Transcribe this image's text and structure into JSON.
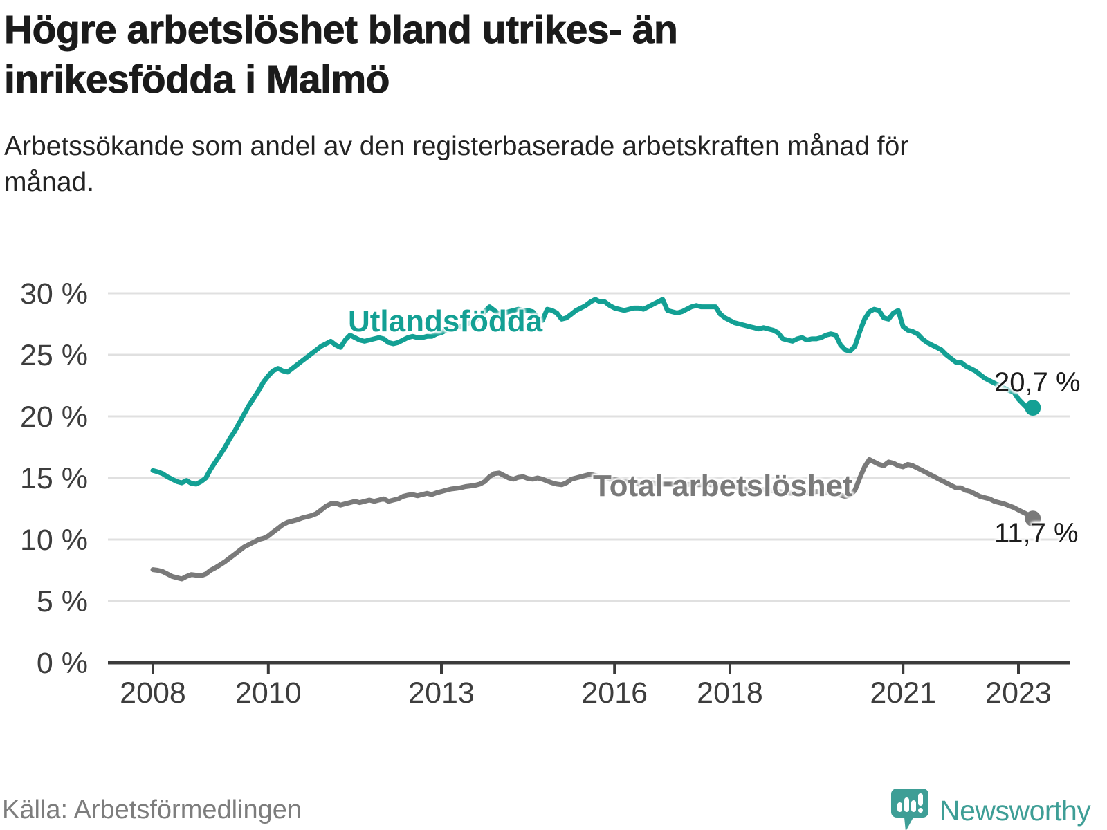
{
  "title": "Högre arbetslöshet bland utrikes- än inrikesfödda i Malmö",
  "subtitle": "Arbetssökande som andel av den registerbaserade arbetskraften månad för månad.",
  "source": "Källa: Arbetsförmedlingen",
  "brand": {
    "name": "Newsworthy",
    "icon": "newsworthy-bubble-bar-chart-icon",
    "color": "#3e9e96"
  },
  "colors": {
    "accent_teal": "#13a094",
    "series_gray": "#7a7a7a",
    "gridline": "#e0e0e0",
    "axis": "#3b3b3b",
    "text_dark": "#1b1b1b",
    "tick_text": "#3d3d3d",
    "source_text": "#7d7d7d"
  },
  "chart_data": {
    "type": "line",
    "title": "Högre arbetslöshet bland utrikes- än inrikesfödda i Malmö",
    "subtitle": "Arbetssökande som andel av den registerbaserade arbetskraften månad för månad.",
    "xlabel": "",
    "ylabel": "",
    "y_unit": "%",
    "ylim": [
      0,
      30
    ],
    "xlim": [
      2008.0,
      2023.25
    ],
    "grid": "horizontal",
    "legend_position": "inline-labels",
    "x_start_year": 2008,
    "points_per_year": 12,
    "x_ticks": [
      2008,
      2010,
      2013,
      2016,
      2018,
      2021,
      2023
    ],
    "y_ticks": [
      0,
      5,
      10,
      15,
      20,
      25,
      30
    ],
    "series": [
      {
        "name": "Utlandsfödda",
        "color": "#13a094",
        "end_label": "20,7 %",
        "end_value": 20.7,
        "values": [
          15.6,
          15.5,
          15.35,
          15.1,
          14.9,
          14.7,
          14.6,
          14.8,
          14.55,
          14.5,
          14.7,
          15.0,
          15.7,
          16.3,
          16.9,
          17.5,
          18.2,
          18.8,
          19.5,
          20.2,
          20.9,
          21.5,
          22.1,
          22.8,
          23.3,
          23.7,
          23.9,
          23.7,
          23.6,
          23.9,
          24.2,
          24.5,
          24.8,
          25.1,
          25.4,
          25.7,
          25.9,
          26.1,
          25.8,
          25.6,
          26.2,
          26.6,
          26.4,
          26.2,
          26.1,
          26.2,
          26.3,
          26.4,
          26.3,
          26.0,
          25.9,
          26.0,
          26.2,
          26.4,
          26.5,
          26.4,
          26.4,
          26.5,
          26.5,
          26.7,
          26.8,
          27.0,
          27.2,
          27.3,
          27.3,
          27.5,
          27.6,
          27.8,
          28.1,
          28.5,
          28.9,
          28.6,
          28.3,
          28.4,
          28.5,
          28.6,
          28.7,
          28.6,
          28.6,
          28.5,
          28.0,
          27.8,
          28.7,
          28.6,
          28.4,
          27.9,
          28.0,
          28.3,
          28.6,
          28.8,
          29.0,
          29.3,
          29.5,
          29.3,
          29.3,
          29.0,
          28.8,
          28.7,
          28.6,
          28.7,
          28.8,
          28.8,
          28.7,
          28.9,
          29.1,
          29.3,
          29.5,
          28.6,
          28.5,
          28.4,
          28.5,
          28.7,
          28.9,
          29.0,
          28.9,
          28.9,
          28.9,
          28.9,
          28.3,
          28.0,
          27.8,
          27.6,
          27.5,
          27.4,
          27.3,
          27.2,
          27.1,
          27.2,
          27.1,
          27.0,
          26.8,
          26.3,
          26.2,
          26.1,
          26.3,
          26.4,
          26.2,
          26.3,
          26.3,
          26.4,
          26.6,
          26.7,
          26.6,
          25.8,
          25.4,
          25.3,
          25.7,
          26.9,
          27.9,
          28.5,
          28.7,
          28.6,
          28.0,
          27.9,
          28.4,
          28.6,
          27.3,
          27.0,
          26.9,
          26.7,
          26.3,
          26.0,
          25.8,
          25.6,
          25.4,
          25.0,
          24.7,
          24.4,
          24.4,
          24.1,
          23.9,
          23.7,
          23.4,
          23.1,
          22.9,
          22.7,
          22.5,
          22.3,
          22.1,
          22.0,
          21.4,
          21.0,
          20.6,
          20.7
        ]
      },
      {
        "name": "Total arbetslöshet",
        "color": "#7a7a7a",
        "end_label": "11,7 %",
        "end_value": 11.7,
        "values": [
          7.55,
          7.5,
          7.4,
          7.2,
          7.0,
          6.9,
          6.8,
          7.0,
          7.15,
          7.1,
          7.05,
          7.2,
          7.5,
          7.7,
          7.95,
          8.2,
          8.5,
          8.8,
          9.1,
          9.4,
          9.6,
          9.8,
          10.0,
          10.1,
          10.3,
          10.6,
          10.9,
          11.2,
          11.4,
          11.5,
          11.6,
          11.75,
          11.85,
          11.95,
          12.1,
          12.4,
          12.7,
          12.9,
          12.95,
          12.8,
          12.9,
          13.0,
          13.1,
          13.0,
          13.1,
          13.2,
          13.1,
          13.2,
          13.3,
          13.1,
          13.2,
          13.3,
          13.5,
          13.6,
          13.65,
          13.55,
          13.65,
          13.75,
          13.65,
          13.8,
          13.9,
          14.0,
          14.1,
          14.15,
          14.2,
          14.3,
          14.35,
          14.4,
          14.5,
          14.7,
          15.1,
          15.35,
          15.4,
          15.2,
          15.0,
          14.9,
          15.05,
          15.1,
          14.95,
          14.9,
          15.0,
          14.9,
          14.75,
          14.6,
          14.5,
          14.45,
          14.6,
          14.9,
          15.0,
          15.1,
          15.2,
          15.3,
          15.2,
          15.1,
          15.0,
          14.9,
          14.9,
          14.8,
          14.7,
          14.65,
          14.6,
          14.5,
          14.5,
          14.55,
          14.6,
          14.55,
          14.5,
          14.5,
          14.5,
          14.45,
          14.4,
          14.45,
          14.5,
          14.45,
          14.45,
          14.5,
          14.45,
          14.4,
          14.4,
          14.35,
          14.3,
          14.25,
          14.2,
          14.1,
          14.05,
          14.0,
          14.0,
          14.05,
          14.0,
          13.95,
          13.9,
          13.85,
          13.8,
          13.75,
          13.75,
          13.8,
          13.85,
          13.85,
          13.9,
          13.9,
          13.85,
          13.85,
          13.7,
          13.6,
          13.5,
          13.6,
          14.0,
          15.0,
          15.9,
          16.5,
          16.3,
          16.1,
          16.0,
          16.3,
          16.2,
          16.0,
          15.9,
          16.1,
          16.0,
          15.8,
          15.6,
          15.4,
          15.2,
          15.0,
          14.8,
          14.6,
          14.4,
          14.2,
          14.2,
          14.0,
          13.9,
          13.7,
          13.5,
          13.4,
          13.3,
          13.1,
          13.0,
          12.9,
          12.75,
          12.6,
          12.4,
          12.2,
          12.0,
          11.7
        ]
      }
    ]
  }
}
